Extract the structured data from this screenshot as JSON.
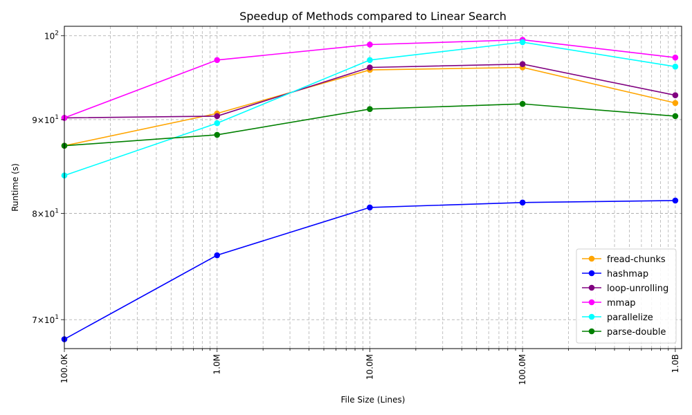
{
  "chart_data": {
    "type": "line",
    "title": "Speedup of Methods compared to Linear Search",
    "xlabel": "File Size (Lines)",
    "ylabel": "Runtime (s)",
    "x_scale": "log",
    "y_scale": "log",
    "x": [
      100000,
      1000000,
      10000000,
      100000000,
      1000000000
    ],
    "x_tick_labels": [
      "100.0K",
      "1.0M",
      "10.0M",
      "100.0M",
      "1.0B"
    ],
    "y_ticks": [
      {
        "value": 70,
        "base": "7×10",
        "exp": "1"
      },
      {
        "value": 80,
        "base": "8×10",
        "exp": "1"
      },
      {
        "value": 90,
        "base": "9×10",
        "exp": "1"
      },
      {
        "value": 100,
        "base": "10",
        "exp": "2"
      }
    ],
    "xlim": [
      100000,
      1100000000
    ],
    "ylim": [
      67.5,
      101.2
    ],
    "grid": true,
    "legend_position": "lower-right",
    "series": [
      {
        "name": "fread-chunks",
        "color": "#ffa500",
        "values": [
          87.1,
          90.7,
          95.8,
          96.1,
          91.9
        ]
      },
      {
        "name": "hashmap",
        "color": "#0000ff",
        "values": [
          68.3,
          75.9,
          80.6,
          81.1,
          81.3
        ]
      },
      {
        "name": "loop-unrolling",
        "color": "#800080",
        "values": [
          90.2,
          90.4,
          96.1,
          96.5,
          92.8
        ]
      },
      {
        "name": "mmap",
        "color": "#ff00ff",
        "values": [
          90.2,
          97.0,
          98.9,
          99.5,
          97.3
        ]
      },
      {
        "name": "parallelize",
        "color": "#00ffff",
        "values": [
          83.9,
          89.6,
          97.0,
          99.2,
          96.2
        ]
      },
      {
        "name": "parse-double",
        "color": "#008000",
        "values": [
          87.1,
          88.3,
          91.2,
          91.8,
          90.4
        ]
      }
    ]
  }
}
